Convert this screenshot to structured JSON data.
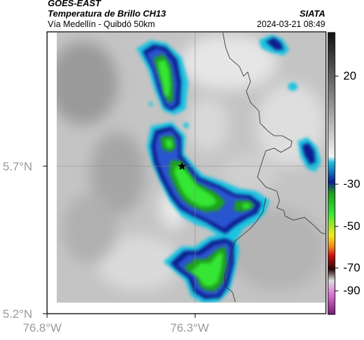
{
  "header": {
    "satellite": "GOES-EAST",
    "product": "Temperatura de Brillo CH13",
    "region": "Vía Medellín - Quibdó 50km",
    "agency": "SIATA",
    "datetime": "2024-03-21 08:49"
  },
  "map": {
    "lat_labels": [
      "5.7°N",
      "5.2°N"
    ],
    "lon_labels": [
      "76.8°W",
      "76.3°W"
    ],
    "marker": "star-marker",
    "gridlines": true
  },
  "colorbar": {
    "labels": [
      "20",
      "-30",
      "-50",
      "-70",
      "-90"
    ],
    "stops": [
      "#111111",
      "#ffffff",
      "#1fc3e0",
      "#0a1f8e",
      "#1ea01e",
      "#35e635",
      "#f4ea1e",
      "#f08a1a",
      "#d11212",
      "#4a0a0a",
      "#d8d8d8",
      "#e070d8",
      "#7a1a7a"
    ]
  },
  "colors": {
    "cloud_cold": "#35d035",
    "cloud_edge": "#1fc3e0",
    "cloud_mid": "#0a1f8e",
    "background_land": "#c8c8c8"
  }
}
